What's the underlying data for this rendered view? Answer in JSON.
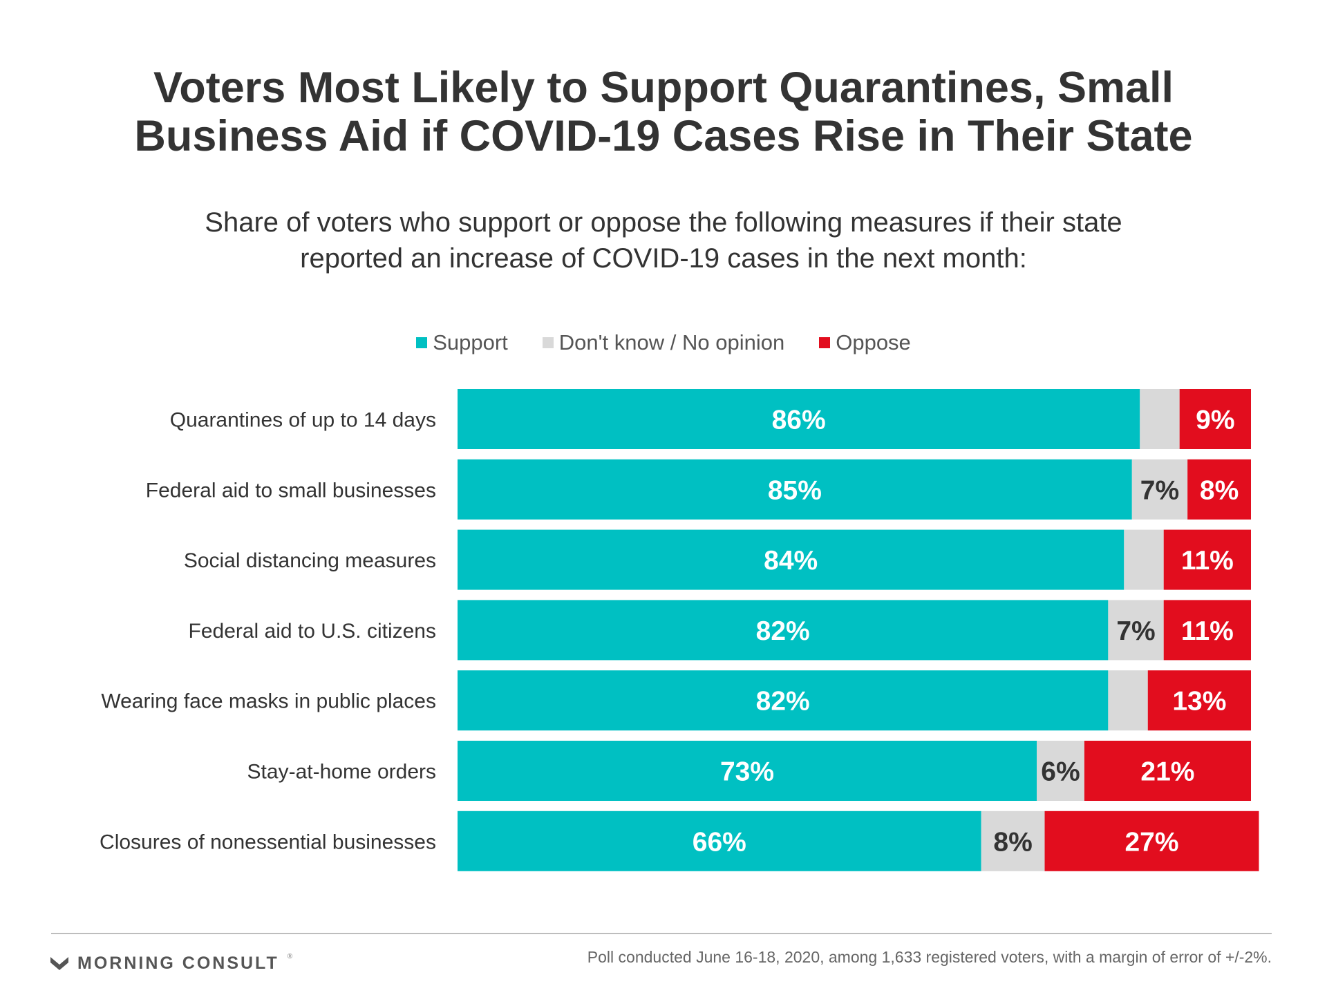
{
  "header": {
    "title_line1": "Voters Most Likely to Support Quarantines, Small",
    "title_line2": "Business Aid if COVID-19 Cases Rise in Their State",
    "subtitle_line1": "Share of voters who support or oppose the following measures if their state",
    "subtitle_line2": "reported an increase of COVID-19 cases in the next month:"
  },
  "legend": {
    "support": "Support",
    "dont_know": "Don't know / No opinion",
    "oppose": "Oppose"
  },
  "colors": {
    "support": "#00c0c2",
    "dont_know": "#d9d9d9",
    "oppose": "#e20d1e"
  },
  "chart_data": {
    "type": "bar",
    "orientation": "horizontal",
    "stacked": true,
    "unit": "%",
    "xlim": [
      0,
      100
    ],
    "legend_position": "top-center",
    "grid": false,
    "categories": [
      "Quarantines of up to 14 days",
      "Federal aid to small businesses",
      "Social distancing measures",
      "Federal aid to U.S. citizens",
      "Wearing face masks in public places",
      "Stay-at-home orders",
      "Closures of nonessential businesses"
    ],
    "series": [
      {
        "name": "Support",
        "values": [
          86,
          85,
          84,
          82,
          82,
          73,
          66
        ],
        "labels": [
          "86%",
          "85%",
          "84%",
          "82%",
          "82%",
          "73%",
          "66%"
        ]
      },
      {
        "name": "Don't know / No opinion",
        "values": [
          5,
          7,
          5,
          7,
          5,
          6,
          8
        ],
        "labels": [
          "",
          "7%",
          "",
          "7%",
          "",
          "6%",
          "8%"
        ]
      },
      {
        "name": "Oppose",
        "values": [
          9,
          8,
          11,
          11,
          13,
          21,
          27
        ],
        "labels": [
          "9%",
          "8%",
          "11%",
          "11%",
          "13%",
          "21%",
          "27%"
        ]
      }
    ]
  },
  "footer": {
    "brand": "MORNING CONSULT",
    "brand_mark": "®",
    "note": "Poll conducted June 16-18, 2020, among 1,633 registered voters, with a margin of error of +/-2%."
  }
}
